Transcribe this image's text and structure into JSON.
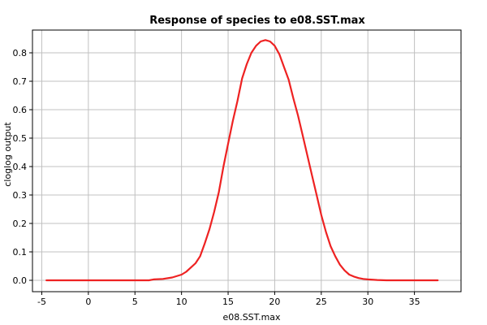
{
  "chart_data": {
    "type": "line",
    "title": "Response of species to e08.SST.max",
    "xlabel": "e08.SST.max",
    "ylabel": "cloglog output",
    "xlim": [
      -6,
      40
    ],
    "ylim": [
      -0.04,
      0.88
    ],
    "x_ticks": [
      -5,
      0,
      5,
      10,
      15,
      20,
      25,
      30,
      35
    ],
    "x_tick_labels": [
      "-5",
      "0",
      "5",
      "10",
      "15",
      "20",
      "25",
      "30",
      "35"
    ],
    "y_ticks": [
      0.0,
      0.1,
      0.2,
      0.3,
      0.4,
      0.5,
      0.6,
      0.7,
      0.8
    ],
    "y_tick_labels": [
      "0.0",
      "0.1",
      "0.2",
      "0.3",
      "0.4",
      "0.5",
      "0.6",
      "0.7",
      "0.8"
    ],
    "grid": true,
    "series": [
      {
        "color": "#ee2222",
        "x": [
          -4.5,
          0,
          5,
          6.5,
          7,
          8,
          9,
          10,
          10.5,
          11,
          11.5,
          12,
          12.5,
          13,
          13.5,
          14,
          14.5,
          15,
          15.5,
          16,
          16.5,
          17,
          17.5,
          18,
          18.5,
          19,
          19.5,
          20,
          20.5,
          21,
          21.5,
          22,
          22.5,
          23,
          23.5,
          24,
          24.5,
          25,
          25.5,
          26,
          26.5,
          27,
          27.5,
          28,
          28.5,
          29,
          29.5,
          30,
          31,
          32,
          33,
          35,
          37.5
        ],
        "values": [
          0,
          0,
          0,
          0,
          0.003,
          0.005,
          0.01,
          0.02,
          0.03,
          0.045,
          0.06,
          0.085,
          0.13,
          0.18,
          0.24,
          0.31,
          0.4,
          0.48,
          0.56,
          0.63,
          0.71,
          0.76,
          0.8,
          0.825,
          0.84,
          0.845,
          0.84,
          0.825,
          0.795,
          0.75,
          0.705,
          0.64,
          0.58,
          0.51,
          0.44,
          0.37,
          0.3,
          0.23,
          0.17,
          0.12,
          0.085,
          0.055,
          0.035,
          0.02,
          0.013,
          0.008,
          0.005,
          0.003,
          0.001,
          0,
          0,
          0,
          0
        ]
      }
    ]
  }
}
